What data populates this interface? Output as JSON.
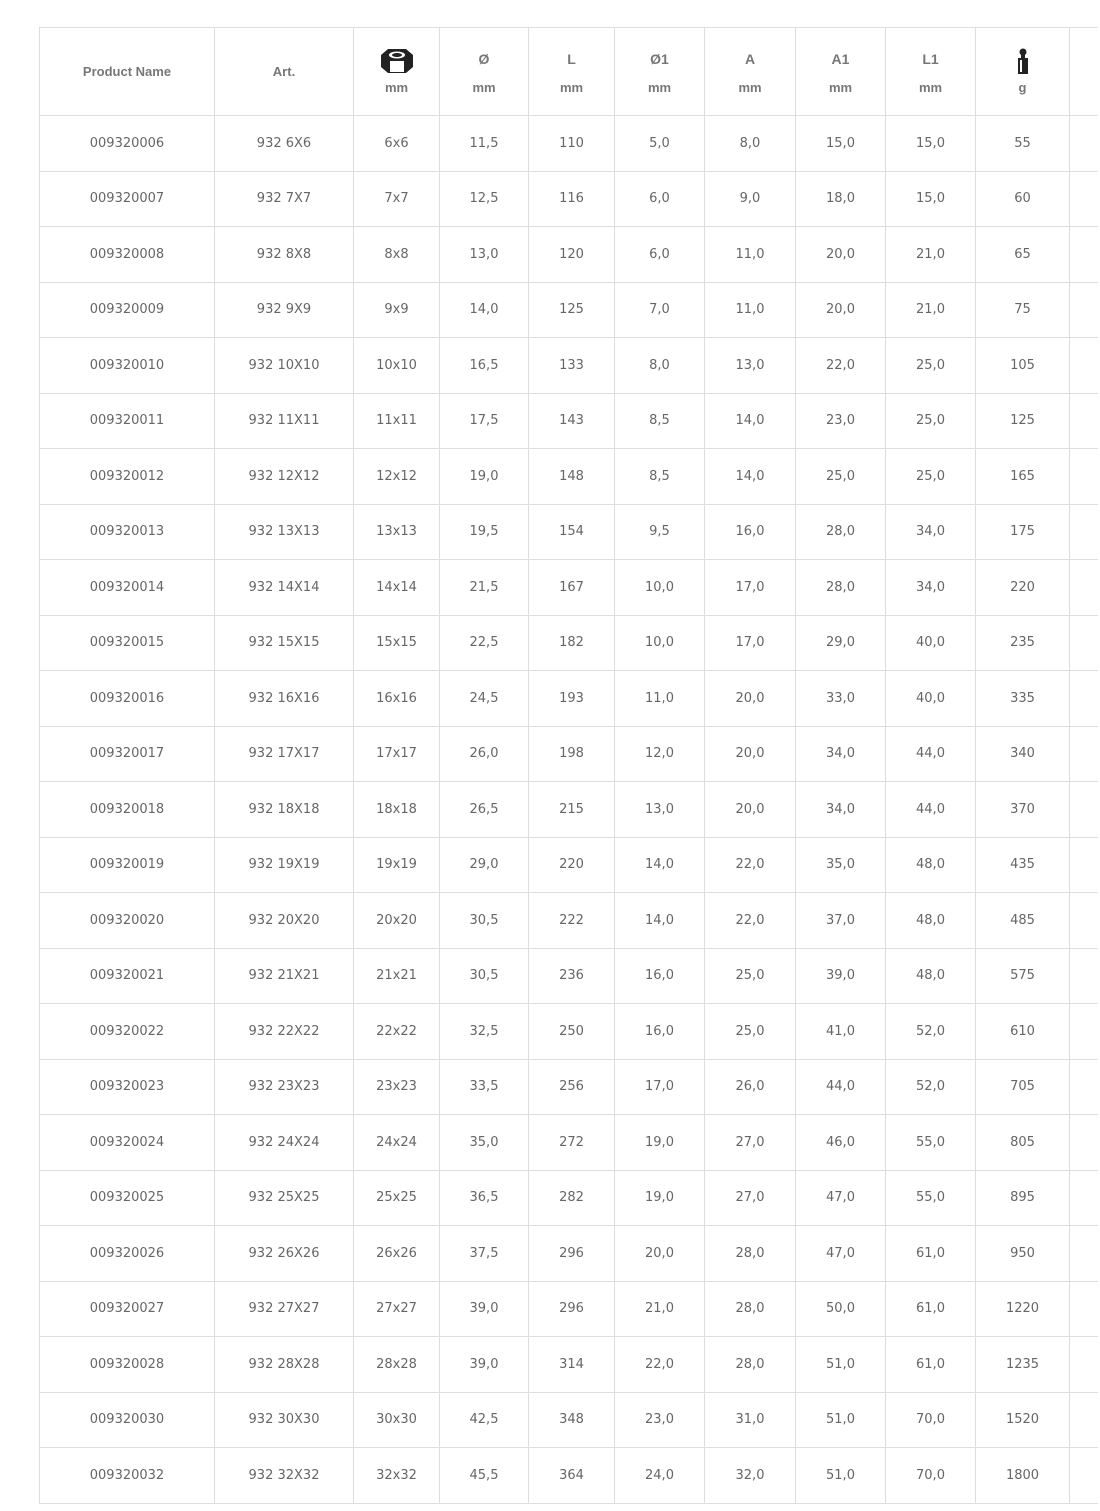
{
  "table": {
    "headers": [
      {
        "label": "Product Name"
      },
      {
        "label": "Art."
      },
      {
        "icon": "hex-nut-icon",
        "unit": "mm"
      },
      {
        "symbol": "Ø",
        "unit": "mm"
      },
      {
        "symbol": "L",
        "unit": "mm"
      },
      {
        "symbol": "Ø1",
        "unit": "mm"
      },
      {
        "symbol": "A",
        "unit": "mm"
      },
      {
        "symbol": "A1",
        "unit": "mm"
      },
      {
        "symbol": "L1",
        "unit": "mm"
      },
      {
        "icon": "weight-icon",
        "unit": "g"
      }
    ],
    "rows": [
      [
        "009320006",
        "932 6X6",
        "6x6",
        "11,5",
        "110",
        "5,0",
        "8,0",
        "15,0",
        "15,0",
        "55"
      ],
      [
        "009320007",
        "932 7X7",
        "7x7",
        "12,5",
        "116",
        "6,0",
        "9,0",
        "18,0",
        "15,0",
        "60"
      ],
      [
        "009320008",
        "932 8X8",
        "8x8",
        "13,0",
        "120",
        "6,0",
        "11,0",
        "20,0",
        "21,0",
        "65"
      ],
      [
        "009320009",
        "932 9X9",
        "9x9",
        "14,0",
        "125",
        "7,0",
        "11,0",
        "20,0",
        "21,0",
        "75"
      ],
      [
        "009320010",
        "932 10X10",
        "10x10",
        "16,5",
        "133",
        "8,0",
        "13,0",
        "22,0",
        "25,0",
        "105"
      ],
      [
        "009320011",
        "932 11X11",
        "11x11",
        "17,5",
        "143",
        "8,5",
        "14,0",
        "23,0",
        "25,0",
        "125"
      ],
      [
        "009320012",
        "932 12X12",
        "12x12",
        "19,0",
        "148",
        "8,5",
        "14,0",
        "25,0",
        "25,0",
        "165"
      ],
      [
        "009320013",
        "932 13X13",
        "13x13",
        "19,5",
        "154",
        "9,5",
        "16,0",
        "28,0",
        "34,0",
        "175"
      ],
      [
        "009320014",
        "932 14X14",
        "14x14",
        "21,5",
        "167",
        "10,0",
        "17,0",
        "28,0",
        "34,0",
        "220"
      ],
      [
        "009320015",
        "932 15X15",
        "15x15",
        "22,5",
        "182",
        "10,0",
        "17,0",
        "29,0",
        "40,0",
        "235"
      ],
      [
        "009320016",
        "932 16X16",
        "16x16",
        "24,5",
        "193",
        "11,0",
        "20,0",
        "33,0",
        "40,0",
        "335"
      ],
      [
        "009320017",
        "932 17X17",
        "17x17",
        "26,0",
        "198",
        "12,0",
        "20,0",
        "34,0",
        "44,0",
        "340"
      ],
      [
        "009320018",
        "932 18X18",
        "18x18",
        "26,5",
        "215",
        "13,0",
        "20,0",
        "34,0",
        "44,0",
        "370"
      ],
      [
        "009320019",
        "932 19X19",
        "19x19",
        "29,0",
        "220",
        "14,0",
        "22,0",
        "35,0",
        "48,0",
        "435"
      ],
      [
        "009320020",
        "932 20X20",
        "20x20",
        "30,5",
        "222",
        "14,0",
        "22,0",
        "37,0",
        "48,0",
        "485"
      ],
      [
        "009320021",
        "932 21X21",
        "21x21",
        "30,5",
        "236",
        "16,0",
        "25,0",
        "39,0",
        "48,0",
        "575"
      ],
      [
        "009320022",
        "932 22X22",
        "22x22",
        "32,5",
        "250",
        "16,0",
        "25,0",
        "41,0",
        "52,0",
        "610"
      ],
      [
        "009320023",
        "932 23X23",
        "23x23",
        "33,5",
        "256",
        "17,0",
        "26,0",
        "44,0",
        "52,0",
        "705"
      ],
      [
        "009320024",
        "932 24X24",
        "24x24",
        "35,0",
        "272",
        "19,0",
        "27,0",
        "46,0",
        "55,0",
        "805"
      ],
      [
        "009320025",
        "932 25X25",
        "25x25",
        "36,5",
        "282",
        "19,0",
        "27,0",
        "47,0",
        "55,0",
        "895"
      ],
      [
        "009320026",
        "932 26X26",
        "26x26",
        "37,5",
        "296",
        "20,0",
        "28,0",
        "47,0",
        "61,0",
        "950"
      ],
      [
        "009320027",
        "932 27X27",
        "27x27",
        "39,0",
        "296",
        "21,0",
        "28,0",
        "50,0",
        "61,0",
        "1220"
      ],
      [
        "009320028",
        "932 28X28",
        "28x28",
        "39,0",
        "314",
        "22,0",
        "28,0",
        "51,0",
        "61,0",
        "1235"
      ],
      [
        "009320030",
        "932 30X30",
        "30x30",
        "42,5",
        "348",
        "23,0",
        "31,0",
        "51,0",
        "70,0",
        "1520"
      ],
      [
        "009320032",
        "932 32X32",
        "32x32",
        "45,5",
        "364",
        "24,0",
        "32,0",
        "51,0",
        "70,0",
        "1800"
      ]
    ]
  }
}
